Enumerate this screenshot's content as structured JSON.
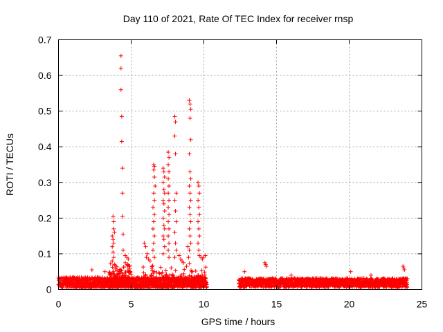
{
  "chart_data": {
    "type": "scatter",
    "title": "Day 110 of 2021, Rate Of TEC Index for receiver rnsp",
    "xlabel": "GPS time / hours",
    "ylabel": "ROTI / TECUs",
    "xlim": [
      0,
      25
    ],
    "ylim": [
      0,
      0.7
    ],
    "xticks": [
      0,
      5,
      10,
      15,
      20,
      25
    ],
    "xtick_labels": [
      "0",
      "5",
      "10",
      "15",
      "20",
      "25"
    ],
    "yticks": [
      0,
      0.1,
      0.2,
      0.3,
      0.4,
      0.5,
      0.6,
      0.7
    ],
    "ytick_labels": [
      "0",
      "0.1",
      "0.2",
      "0.3",
      "0.4",
      "0.5",
      "0.6",
      "0.7"
    ],
    "grid": true,
    "marker": "+",
    "color": "#ff0000",
    "series": [
      {
        "name": "ROTI",
        "background_segments": [
          {
            "x_start": 0.0,
            "x_end": 10.2,
            "y_base": 0.015,
            "y_spread": 0.03
          },
          {
            "x_start": 12.4,
            "x_end": 24.0,
            "y_base": 0.015,
            "y_spread": 0.025
          }
        ],
        "points": [
          [
            4.3,
            0.655
          ],
          [
            4.3,
            0.62
          ],
          [
            4.3,
            0.56
          ],
          [
            4.35,
            0.485
          ],
          [
            4.35,
            0.415
          ],
          [
            4.4,
            0.34
          ],
          [
            4.4,
            0.27
          ],
          [
            4.4,
            0.205
          ],
          [
            4.45,
            0.155
          ],
          [
            4.45,
            0.11
          ],
          [
            3.75,
            0.205
          ],
          [
            3.8,
            0.19
          ],
          [
            3.8,
            0.17
          ],
          [
            3.85,
            0.16
          ],
          [
            3.7,
            0.15
          ],
          [
            3.75,
            0.14
          ],
          [
            3.8,
            0.13
          ],
          [
            3.7,
            0.12
          ],
          [
            3.75,
            0.105
          ],
          [
            3.8,
            0.09
          ],
          [
            3.7,
            0.08
          ],
          [
            3.85,
            0.07
          ],
          [
            4.6,
            0.095
          ],
          [
            4.7,
            0.09
          ],
          [
            4.8,
            0.085
          ],
          [
            4.6,
            0.075
          ],
          [
            4.75,
            0.07
          ],
          [
            4.9,
            0.065
          ],
          [
            5.9,
            0.13
          ],
          [
            6.0,
            0.12
          ],
          [
            6.1,
            0.1
          ],
          [
            6.05,
            0.09
          ],
          [
            6.2,
            0.085
          ],
          [
            6.3,
            0.08
          ],
          [
            6.55,
            0.35
          ],
          [
            6.6,
            0.345
          ],
          [
            6.55,
            0.335
          ],
          [
            6.6,
            0.315
          ],
          [
            6.65,
            0.29
          ],
          [
            6.55,
            0.27
          ],
          [
            6.6,
            0.25
          ],
          [
            6.5,
            0.23
          ],
          [
            6.6,
            0.21
          ],
          [
            6.55,
            0.19
          ],
          [
            6.5,
            0.17
          ],
          [
            6.6,
            0.15
          ],
          [
            6.55,
            0.13
          ],
          [
            6.5,
            0.11
          ],
          [
            6.6,
            0.09
          ],
          [
            7.2,
            0.34
          ],
          [
            7.25,
            0.33
          ],
          [
            7.3,
            0.315
          ],
          [
            7.2,
            0.3
          ],
          [
            7.25,
            0.28
          ],
          [
            7.3,
            0.27
          ],
          [
            7.2,
            0.25
          ],
          [
            7.25,
            0.24
          ],
          [
            7.3,
            0.22
          ],
          [
            7.2,
            0.2
          ],
          [
            7.25,
            0.18
          ],
          [
            7.3,
            0.17
          ],
          [
            7.2,
            0.15
          ],
          [
            7.25,
            0.14
          ],
          [
            7.3,
            0.12
          ],
          [
            7.2,
            0.1
          ],
          [
            7.55,
            0.385
          ],
          [
            7.6,
            0.37
          ],
          [
            7.55,
            0.35
          ],
          [
            7.6,
            0.33
          ],
          [
            7.55,
            0.31
          ],
          [
            7.6,
            0.29
          ],
          [
            7.55,
            0.27
          ],
          [
            7.6,
            0.25
          ],
          [
            7.55,
            0.23
          ],
          [
            7.6,
            0.21
          ],
          [
            7.55,
            0.19
          ],
          [
            7.6,
            0.17
          ],
          [
            7.55,
            0.15
          ],
          [
            7.6,
            0.13
          ],
          [
            7.55,
            0.11
          ],
          [
            7.6,
            0.09
          ],
          [
            8.0,
            0.485
          ],
          [
            8.05,
            0.47
          ],
          [
            8.0,
            0.43
          ],
          [
            8.05,
            0.38
          ],
          [
            8.1,
            0.27
          ],
          [
            8.0,
            0.25
          ],
          [
            8.05,
            0.22
          ],
          [
            8.1,
            0.19
          ],
          [
            8.0,
            0.16
          ],
          [
            8.05,
            0.13
          ],
          [
            8.1,
            0.11
          ],
          [
            8.0,
            0.09
          ],
          [
            8.3,
            0.095
          ],
          [
            8.4,
            0.085
          ],
          [
            8.5,
            0.08
          ],
          [
            8.6,
            0.075
          ],
          [
            9.0,
            0.53
          ],
          [
            9.05,
            0.52
          ],
          [
            9.1,
            0.505
          ],
          [
            9.05,
            0.48
          ],
          [
            9.1,
            0.42
          ],
          [
            9.0,
            0.38
          ],
          [
            9.05,
            0.33
          ],
          [
            9.1,
            0.31
          ],
          [
            9.0,
            0.29
          ],
          [
            9.05,
            0.27
          ],
          [
            9.1,
            0.25
          ],
          [
            9.0,
            0.23
          ],
          [
            9.05,
            0.21
          ],
          [
            9.1,
            0.19
          ],
          [
            9.0,
            0.17
          ],
          [
            9.05,
            0.15
          ],
          [
            9.1,
            0.13
          ],
          [
            9.0,
            0.11
          ],
          [
            8.9,
            0.12
          ],
          [
            8.95,
            0.09
          ],
          [
            9.6,
            0.3
          ],
          [
            9.65,
            0.29
          ],
          [
            9.7,
            0.27
          ],
          [
            9.6,
            0.25
          ],
          [
            9.65,
            0.23
          ],
          [
            9.7,
            0.21
          ],
          [
            9.6,
            0.19
          ],
          [
            9.65,
            0.17
          ],
          [
            9.7,
            0.15
          ],
          [
            9.6,
            0.13
          ],
          [
            9.65,
            0.11
          ],
          [
            9.7,
            0.095
          ],
          [
            9.8,
            0.09
          ],
          [
            9.9,
            0.085
          ],
          [
            10.0,
            0.09
          ],
          [
            10.1,
            0.095
          ],
          [
            1.0,
            0.035
          ],
          [
            2.3,
            0.055
          ],
          [
            3.2,
            0.05
          ],
          [
            14.2,
            0.075
          ],
          [
            14.25,
            0.07
          ],
          [
            14.3,
            0.065
          ],
          [
            12.8,
            0.05
          ],
          [
            16.0,
            0.04
          ],
          [
            20.1,
            0.05
          ],
          [
            21.5,
            0.04
          ],
          [
            23.7,
            0.065
          ],
          [
            23.75,
            0.06
          ],
          [
            23.8,
            0.055
          ]
        ]
      }
    ]
  }
}
